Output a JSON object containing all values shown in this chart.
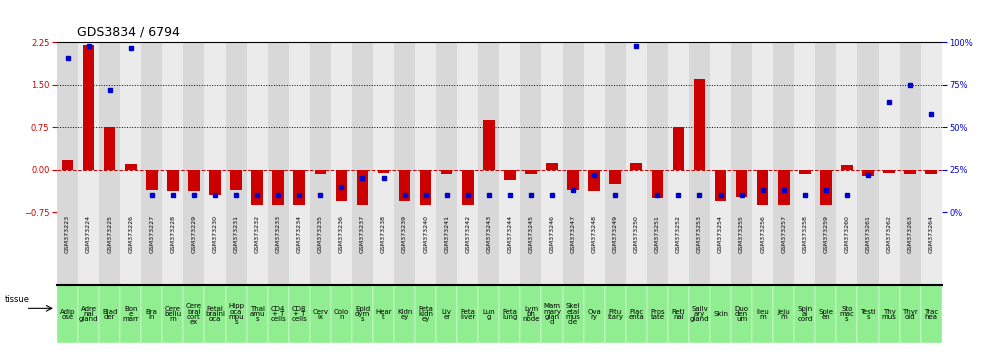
{
  "title": "GDS3834 / 6794",
  "gsm_labels": [
    "GSM373223",
    "GSM373224",
    "GSM373225",
    "GSM373226",
    "GSM373227",
    "GSM373228",
    "GSM373229",
    "GSM373230",
    "GSM373231",
    "GSM373232",
    "GSM373233",
    "GSM373234",
    "GSM373235",
    "GSM373236",
    "GSM373237",
    "GSM373238",
    "GSM373239",
    "GSM373240",
    "GSM373241",
    "GSM373242",
    "GSM373243",
    "GSM373244",
    "GSM373245",
    "GSM373246",
    "GSM373247",
    "GSM373248",
    "GSM373249",
    "GSM373250",
    "GSM373251",
    "GSM373252",
    "GSM373253",
    "GSM373254",
    "GSM373255",
    "GSM373256",
    "GSM373257",
    "GSM373258",
    "GSM373259",
    "GSM373260",
    "GSM373261",
    "GSM373262",
    "GSM373263",
    "GSM373264"
  ],
  "tissue_labels_short": [
    "Adip\nose",
    "Adre\nnal\ngland",
    "Blad\nder",
    "Bon\ne\nmarr",
    "Bra\nin",
    "Cere\nbellu\nm",
    "Cere\nbral\ncort\nex",
    "Fetal\nbrainl\noca",
    "Hipp\noca\nmpu\ns",
    "Thal\namu\ns",
    "CD4\n+ T\ncells",
    "CD8\n+ T\ncells",
    "Cerv\nix",
    "Colo\nn",
    "Epid\ndym\ns",
    "Hear\nt",
    "Kidn\ney",
    "Feta\nkidn\ney",
    "Liv\ner",
    "Feta\nliver",
    "Lun\ng",
    "Feta\nlung",
    "Lym\nph\nnode",
    "Mam\nmary\nglan\nd",
    "Skel\netal\nmus\ncle",
    "Ova\nry",
    "Pitu\nitary",
    "Plac\nenta",
    "Pros\ntate",
    "Reti\nnal",
    "Saliv\nary\ngland",
    "Skin",
    "Duo\nden\num",
    "Ileu\nm",
    "Jeju\nm",
    "Spin\nal\ncord",
    "Sple\nen",
    "Sto\nmac\ns",
    "Testi\ns",
    "Thy\nmus",
    "Thyr\noid",
    "Trac\nhea"
  ],
  "log10_ratio": [
    0.18,
    2.2,
    0.75,
    0.1,
    -0.35,
    -0.38,
    -0.38,
    -0.45,
    -0.35,
    -0.62,
    -0.62,
    -0.62,
    -0.08,
    -0.55,
    -0.62,
    -0.06,
    -0.55,
    -0.62,
    -0.08,
    -0.62,
    0.88,
    -0.18,
    -0.08,
    0.12,
    -0.35,
    -0.38,
    -0.25,
    0.12,
    -0.5,
    0.75,
    1.6,
    -0.55,
    -0.48,
    -0.62,
    -0.62,
    -0.08,
    -0.62,
    0.08,
    -0.1,
    -0.05,
    -0.08,
    -0.08
  ],
  "percentile_rank": [
    91,
    98,
    72,
    97,
    10,
    10,
    10,
    10,
    10,
    10,
    10,
    10,
    10,
    15,
    20,
    20,
    10,
    10,
    10,
    10,
    10,
    10,
    10,
    10,
    13,
    22,
    10,
    98,
    10,
    10,
    10,
    10,
    10,
    13,
    13,
    10,
    13,
    10,
    22,
    65,
    75,
    58
  ],
  "ylim": [
    -0.75,
    2.25
  ],
  "y2lim": [
    0,
    100
  ],
  "yticks": [
    -0.75,
    0,
    0.75,
    1.5,
    2.25
  ],
  "y2ticks": [
    0,
    25,
    50,
    75,
    100
  ],
  "dotted_lines": [
    0.75,
    1.5
  ],
  "bar_color": "#cc0000",
  "dot_color": "#0000cc",
  "zero_line_color": "#cc0000",
  "bg_color_odd": "#d8d8d8",
  "bg_color_even": "#ebebeb",
  "gsm_bg": "#c8c8c8",
  "tissue_bg_color": "#90ee90",
  "title_fontsize": 9,
  "tick_fontsize": 6,
  "tissue_fontsize": 5,
  "gsm_fontsize": 4.5
}
